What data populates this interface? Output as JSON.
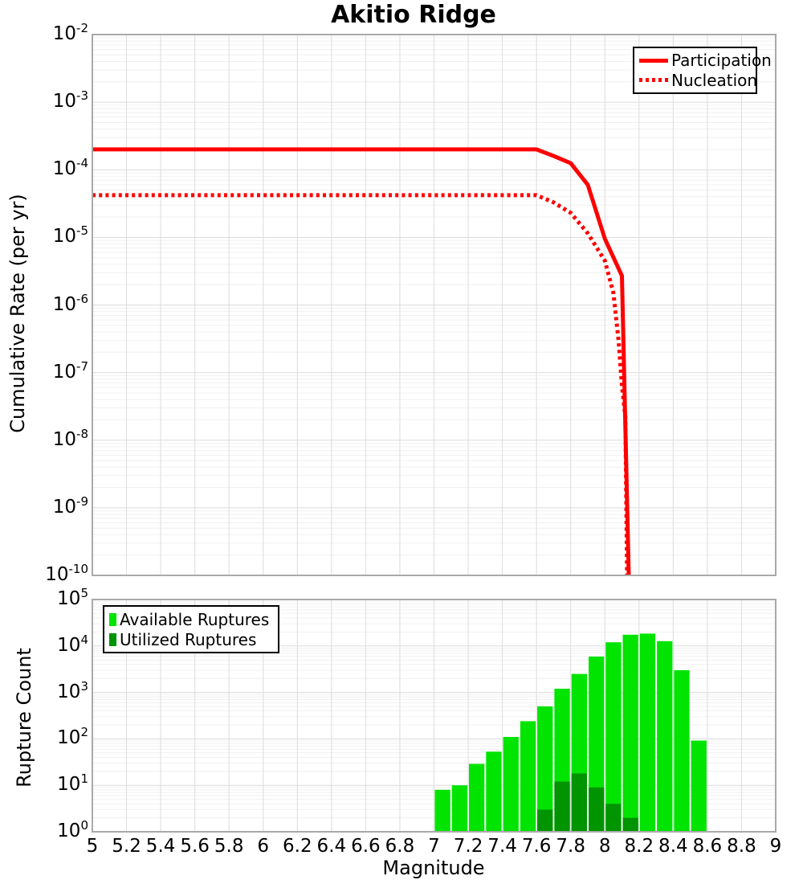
{
  "title": "Akitio Ridge",
  "chart_data": [
    {
      "type": "line",
      "title": "Akitio Ridge",
      "xlabel": "Magnitude",
      "ylabel": "Cumulative Rate (per yr)",
      "xlim": [
        5,
        9
      ],
      "ylim": [
        1e-10,
        0.01
      ],
      "yscale": "log",
      "grid": true,
      "legend_position": "top-right",
      "x_tick_labels": [
        "5",
        "5.2",
        "5.4",
        "5.6",
        "5.8",
        "6",
        "6.2",
        "6.4",
        "6.6",
        "6.8",
        "7",
        "7.2",
        "7.4",
        "7.6",
        "7.8",
        "8",
        "8.2",
        "8.4",
        "8.6",
        "8.8",
        "9"
      ],
      "y_tick_exponents": [
        -2,
        -3,
        -4,
        -5,
        -6,
        -7,
        -8,
        -9,
        -10
      ],
      "series": [
        {
          "name": "Participation",
          "color": "#ff0000",
          "style": "solid",
          "points": [
            [
              5.0,
              0.0002
            ],
            [
              7.6,
              0.0002
            ],
            [
              7.7,
              0.00016
            ],
            [
              7.8,
              0.000125
            ],
            [
              7.9,
              6e-05
            ],
            [
              8.0,
              9.5e-06
            ],
            [
              8.1,
              2.7e-06
            ],
            [
              8.14,
              1e-10
            ]
          ]
        },
        {
          "name": "Nucleation",
          "color": "#ff0000",
          "style": "dotted",
          "points": [
            [
              5.0,
              4.2e-05
            ],
            [
              7.6,
              4.2e-05
            ],
            [
              7.7,
              3.3e-05
            ],
            [
              7.8,
              2.3e-05
            ],
            [
              7.9,
              1.15e-05
            ],
            [
              8.0,
              4.5e-06
            ],
            [
              8.05,
              1.5e-06
            ],
            [
              8.08,
              3e-07
            ],
            [
              8.1,
              6.5e-08
            ],
            [
              8.12,
              2.2e-08
            ],
            [
              8.13,
              1e-10
            ]
          ]
        }
      ]
    },
    {
      "type": "bar",
      "title": "",
      "xlabel": "Magnitude",
      "ylabel": "Rupture Count",
      "xlim": [
        5,
        9
      ],
      "ylim": [
        1,
        100000
      ],
      "yscale": "log",
      "grid": true,
      "legend_position": "top-left",
      "x_tick_labels": [
        "5",
        "5.2",
        "5.4",
        "5.6",
        "5.8",
        "6",
        "6.2",
        "6.4",
        "6.6",
        "6.8",
        "7",
        "7.2",
        "7.4",
        "7.6",
        "7.8",
        "8",
        "8.2",
        "8.4",
        "8.6",
        "8.8",
        "9"
      ],
      "y_tick_exponents": [
        0,
        1,
        2,
        3,
        4,
        5
      ],
      "bin_width": 0.1,
      "bin_starts": [
        7.0,
        7.1,
        7.2,
        7.3,
        7.4,
        7.5,
        7.6,
        7.7,
        7.8,
        7.9,
        8.0,
        8.1,
        8.2,
        8.3,
        8.4,
        8.5
      ],
      "series": [
        {
          "name": "Available Ruptures",
          "color": "#00e400",
          "values": [
            8,
            10,
            29,
            53,
            110,
            240,
            500,
            1200,
            2500,
            5900,
            12000,
            17500,
            18500,
            12700,
            3000,
            92
          ]
        },
        {
          "name": "Utilized Ruptures",
          "color": "#009400",
          "values": [
            null,
            null,
            null,
            null,
            null,
            null,
            3,
            12,
            18,
            9,
            4,
            2,
            null,
            null,
            null,
            null
          ]
        }
      ]
    }
  ]
}
